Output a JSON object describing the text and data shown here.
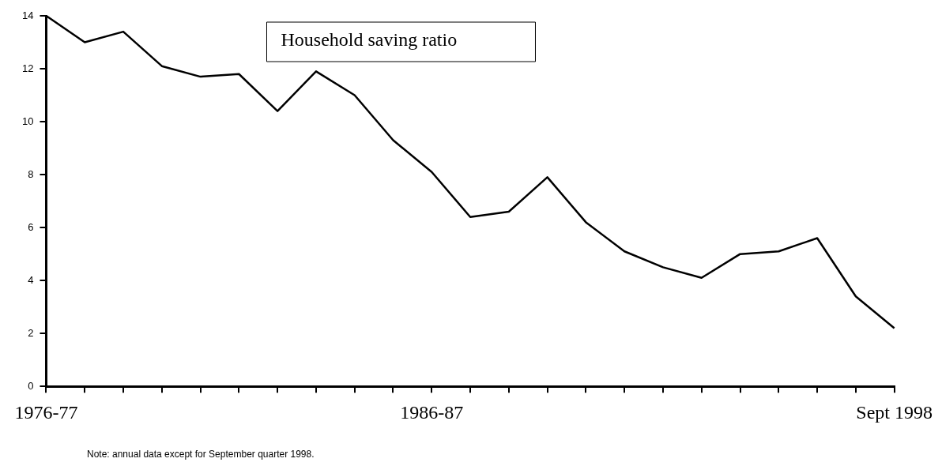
{
  "chart_data": {
    "type": "line",
    "title": "Household saving ratio",
    "categories": [
      "1976-77",
      null,
      null,
      null,
      null,
      null,
      null,
      null,
      null,
      null,
      "1986-87",
      null,
      null,
      null,
      null,
      null,
      null,
      null,
      null,
      null,
      null,
      null,
      "Sept 1998"
    ],
    "series": [
      {
        "color": "#000000",
        "values": [
          14.0,
          13.0,
          13.4,
          12.1,
          11.7,
          11.8,
          10.4,
          11.9,
          11.0,
          9.3,
          8.1,
          6.4,
          6.6,
          7.9,
          6.2,
          5.1,
          4.5,
          4.1,
          5.0,
          5.1,
          5.6,
          3.4,
          2.2
        ]
      }
    ],
    "ylim": [
      0,
      14
    ],
    "yticks": [
      0,
      2,
      4,
      6,
      8,
      10,
      12,
      14
    ],
    "grid": false,
    "legend": false,
    "marker": "none",
    "line_style": "solid",
    "annotations": [
      "Note:  annual data except for September quarter 1998."
    ]
  }
}
